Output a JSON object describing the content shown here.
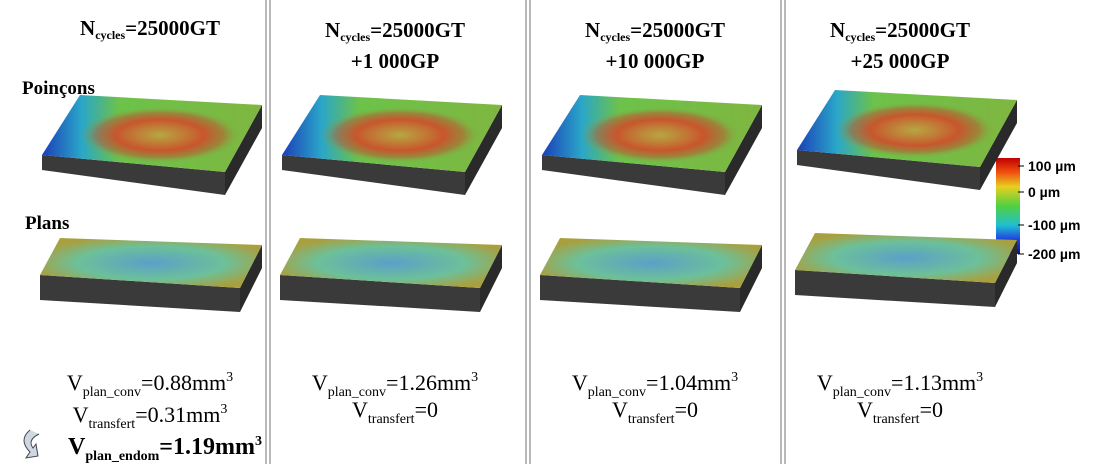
{
  "columns": [
    {
      "header": {
        "symbol": "N",
        "sub": "cycles",
        "text": "=25000GT"
      },
      "volumes": [
        {
          "symbol": "V",
          "sub": "plan_conv",
          "text": "=0.88mm",
          "sup": "3"
        },
        {
          "symbol": "V",
          "sub": "transfert",
          "text": "=0.31mm",
          "sup": "3"
        },
        {
          "symbol": "V",
          "sub": "plan_endom",
          "text": "=1.19mm",
          "sup": "3"
        }
      ]
    },
    {
      "header": {
        "symbol": "N",
        "sub": "cycles",
        "text": "=25000GT",
        "line2": "+1 000GP"
      },
      "volumes": [
        {
          "symbol": "V",
          "sub": "plan_conv",
          "text": "=1.26mm",
          "sup": "3"
        },
        {
          "symbol": "V",
          "sub": "transfert",
          "text": "=0"
        }
      ]
    },
    {
      "header": {
        "symbol": "N",
        "sub": "cycles",
        "text": "=25000GT",
        "line2": "+10 000GP"
      },
      "volumes": [
        {
          "symbol": "V",
          "sub": "plan_conv",
          "text": "=1.04mm",
          "sup": "3"
        },
        {
          "symbol": "V",
          "sub": "transfert",
          "text": "=0"
        }
      ]
    },
    {
      "header": {
        "symbol": "N",
        "sub": "cycles",
        "text": "=25000GT",
        "line2": "+25 000GP"
      },
      "volumes": [
        {
          "symbol": "V",
          "sub": "plan_conv",
          "text": "=1.13mm",
          "sup": "3"
        },
        {
          "symbol": "V",
          "sub": "transfert",
          "text": "=0"
        }
      ]
    }
  ],
  "row_labels": [
    "Poinçons",
    "Plans"
  ],
  "colorbar": {
    "labels": [
      "100 µm",
      "0 µm",
      "-100 µm",
      "-200 µm"
    ]
  }
}
